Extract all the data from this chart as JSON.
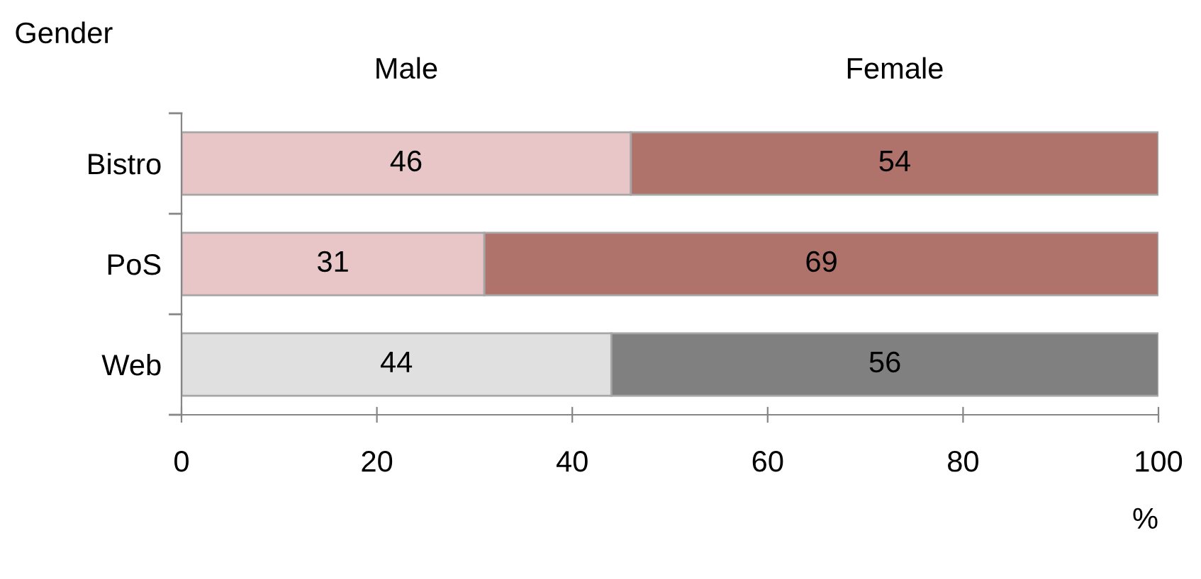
{
  "chart_data": {
    "type": "bar",
    "orientation": "horizontal",
    "stacked": true,
    "legend_title": "Gender",
    "xlabel": "%",
    "categories": [
      "Bistro",
      "PoS",
      "Web"
    ],
    "series": [
      {
        "name": "Male",
        "colors": [
          "#e8c5c7",
          "#e8c5c7",
          "#e0e0e0"
        ],
        "values": [
          46,
          31,
          44
        ]
      },
      {
        "name": "Female",
        "colors": [
          "#b0736b",
          "#b0736b",
          "#808080"
        ],
        "values": [
          54,
          69,
          56
        ]
      }
    ],
    "xlim": [
      0,
      100
    ],
    "xticks": [
      0,
      20,
      40,
      60,
      80,
      100
    ],
    "data_labels": true,
    "grid": false,
    "legend": "top"
  }
}
